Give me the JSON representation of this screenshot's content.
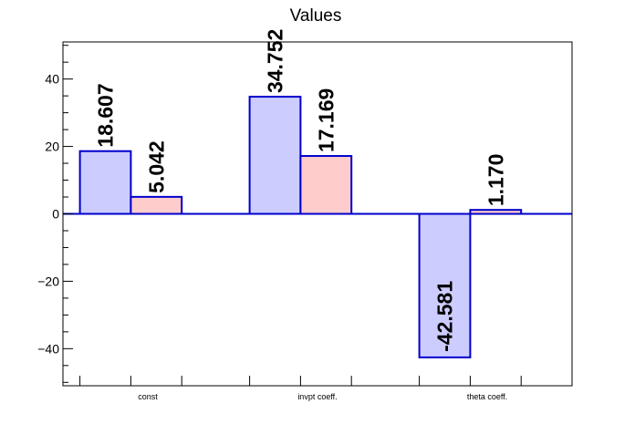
{
  "chart_data": {
    "type": "bar",
    "title": "Values",
    "xlabel": "",
    "ylabel": "",
    "categories": [
      "const",
      "invpt coeff.",
      "theta coeff."
    ],
    "series": [
      {
        "values": [
          18.607,
          34.752,
          -42.581
        ],
        "labels": [
          "18.607",
          "34.752",
          "-42.581"
        ],
        "color": "#ccccff",
        "stroke": "#0000cc"
      },
      {
        "values": [
          5.042,
          17.169,
          1.17
        ],
        "labels": [
          "5.042",
          "17.169",
          "1.170"
        ],
        "color": "#ffcccc",
        "stroke": "#0000cc"
      }
    ],
    "ylim": [
      -51,
      51
    ],
    "yticks": [
      -40,
      -20,
      0,
      20,
      40
    ],
    "ytick_labels": [
      "−40",
      "−20",
      "0",
      "20",
      "40"
    ],
    "grid": false,
    "zero_line_color": "#0000cc"
  }
}
